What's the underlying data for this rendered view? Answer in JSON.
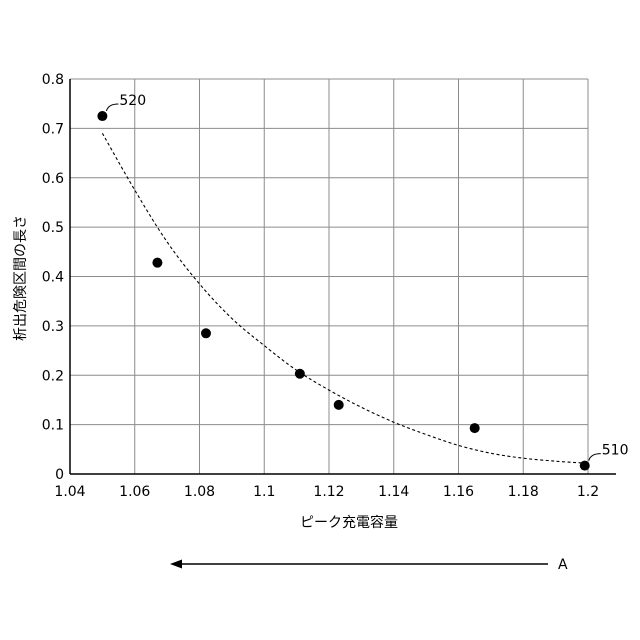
{
  "chart_data": {
    "type": "scatter",
    "xlabel": "ピーク充電容量",
    "ylabel": "析出危険区間の長さ",
    "xlim": [
      1.04,
      1.2
    ],
    "ylim": [
      0,
      0.8
    ],
    "x_ticks": [
      "1.04",
      "1.06",
      "1.08",
      "1.1",
      "1.12",
      "1.14",
      "1.16",
      "1.18",
      "1.2"
    ],
    "y_ticks": [
      "0",
      "0.1",
      "0.2",
      "0.3",
      "0.4",
      "0.5",
      "0.6",
      "0.7",
      "0.8"
    ],
    "grid": true,
    "points": [
      {
        "x": 1.05,
        "y": 0.725
      },
      {
        "x": 1.067,
        "y": 0.428
      },
      {
        "x": 1.082,
        "y": 0.285
      },
      {
        "x": 1.111,
        "y": 0.203
      },
      {
        "x": 1.123,
        "y": 0.14
      },
      {
        "x": 1.165,
        "y": 0.093
      },
      {
        "x": 1.199,
        "y": 0.017
      }
    ],
    "fit_curve": {
      "style": "dashed",
      "points": [
        {
          "x": 1.05,
          "y": 0.69
        },
        {
          "x": 1.06,
          "y": 0.575
        },
        {
          "x": 1.07,
          "y": 0.47
        },
        {
          "x": 1.08,
          "y": 0.385
        },
        {
          "x": 1.09,
          "y": 0.315
        },
        {
          "x": 1.1,
          "y": 0.26
        },
        {
          "x": 1.11,
          "y": 0.21
        },
        {
          "x": 1.12,
          "y": 0.17
        },
        {
          "x": 1.13,
          "y": 0.135
        },
        {
          "x": 1.14,
          "y": 0.105
        },
        {
          "x": 1.15,
          "y": 0.08
        },
        {
          "x": 1.16,
          "y": 0.058
        },
        {
          "x": 1.17,
          "y": 0.042
        },
        {
          "x": 1.18,
          "y": 0.032
        },
        {
          "x": 1.19,
          "y": 0.026
        },
        {
          "x": 1.199,
          "y": 0.022
        }
      ]
    },
    "annotations": [
      {
        "text": "520",
        "point_index": 0
      },
      {
        "text": "510",
        "point_index": 6
      }
    ],
    "arrow": {
      "label": "A",
      "direction": "left"
    }
  }
}
